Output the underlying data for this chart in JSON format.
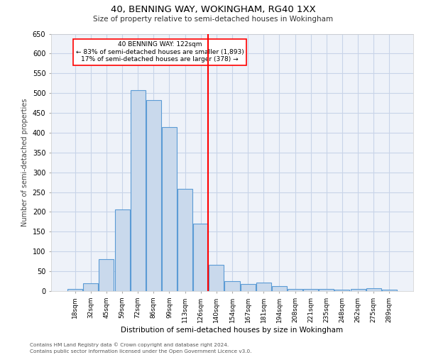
{
  "title": "40, BENNING WAY, WOKINGHAM, RG40 1XX",
  "subtitle": "Size of property relative to semi-detached houses in Wokingham",
  "xlabel": "Distribution of semi-detached houses by size in Wokingham",
  "ylabel": "Number of semi-detached properties",
  "categories": [
    "18sqm",
    "32sqm",
    "45sqm",
    "59sqm",
    "72sqm",
    "86sqm",
    "99sqm",
    "113sqm",
    "126sqm",
    "140sqm",
    "154sqm",
    "167sqm",
    "181sqm",
    "194sqm",
    "208sqm",
    "221sqm",
    "235sqm",
    "248sqm",
    "262sqm",
    "275sqm",
    "289sqm"
  ],
  "values": [
    6,
    20,
    80,
    207,
    507,
    482,
    415,
    259,
    170,
    67,
    26,
    18,
    22,
    13,
    5,
    5,
    5,
    4,
    5,
    7,
    4
  ],
  "bar_color": "#c9d9ec",
  "bar_edge_color": "#5b9bd5",
  "property_line_x": 8.475,
  "annotation_text_line1": "40 BENNING WAY: 122sqm",
  "annotation_text_line2": "← 83% of semi-detached houses are smaller (1,893)",
  "annotation_text_line3": "17% of semi-detached houses are larger (378) →",
  "ylim": [
    0,
    650
  ],
  "yticks": [
    0,
    50,
    100,
    150,
    200,
    250,
    300,
    350,
    400,
    450,
    500,
    550,
    600,
    650
  ],
  "grid_color": "#c8d4e8",
  "bg_color": "#eef2f9",
  "footnote1": "Contains HM Land Registry data © Crown copyright and database right 2024.",
  "footnote2": "Contains public sector information licensed under the Open Government Licence v3.0."
}
